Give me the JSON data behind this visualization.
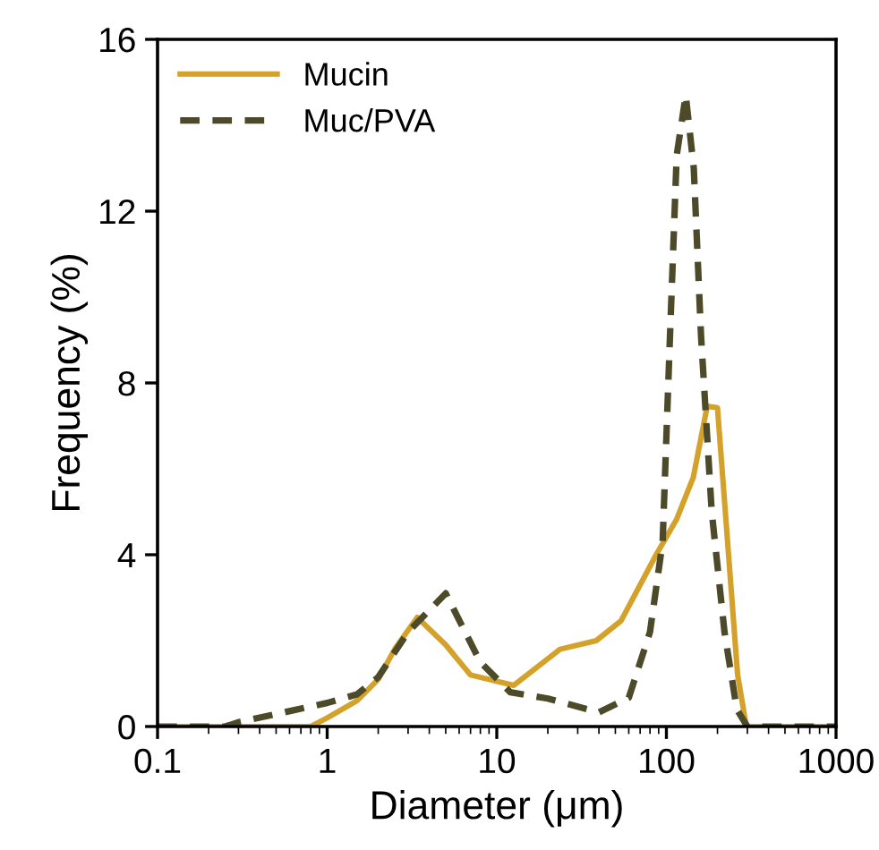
{
  "chart_data": {
    "type": "line",
    "xlabel": "Diameter (μm)",
    "ylabel": "Frequency (%)",
    "log": "x",
    "xlim": [
      0.1,
      1000
    ],
    "xticks": [
      0.1,
      1,
      10,
      100,
      1000
    ],
    "ylim": [
      0,
      16
    ],
    "yticks": [
      0,
      4,
      8,
      12,
      16
    ],
    "grid": false,
    "legend": "top left",
    "series": [
      {
        "name": "Mucin",
        "color": "#d4a12a",
        "line_style": "solid",
        "x": [
          0.1,
          0.5,
          0.8,
          1,
          1.5,
          2,
          2.5,
          3.4,
          5,
          7,
          12.6,
          23.6,
          38.6,
          54,
          87,
          115,
          144,
          174,
          200,
          263,
          296,
          1000
        ],
        "values": [
          0,
          0,
          0,
          0.2,
          0.6,
          1.1,
          1.8,
          2.54,
          1.9,
          1.2,
          0.96,
          1.8,
          2.0,
          2.46,
          4.0,
          4.83,
          5.8,
          7.46,
          7.42,
          1.2,
          0,
          0
        ]
      },
      {
        "name": "Muc/PVA",
        "color": "#4d4a2a",
        "line_style": "dashed",
        "x": [
          0.1,
          0.25,
          0.3,
          1,
          1.5,
          2,
          3,
          5,
          8,
          12,
          20,
          40,
          60,
          80,
          95,
          105,
          115,
          130,
          145,
          160,
          185,
          220,
          260,
          300,
          1000
        ],
        "values": [
          0,
          0,
          0.1,
          0.55,
          0.75,
          1.15,
          2.2,
          3.1,
          1.5,
          0.8,
          0.65,
          0.33,
          0.67,
          2.2,
          4.3,
          9.1,
          13.3,
          14.7,
          13.0,
          9.1,
          5.0,
          2.2,
          0.4,
          0,
          0
        ]
      }
    ]
  }
}
